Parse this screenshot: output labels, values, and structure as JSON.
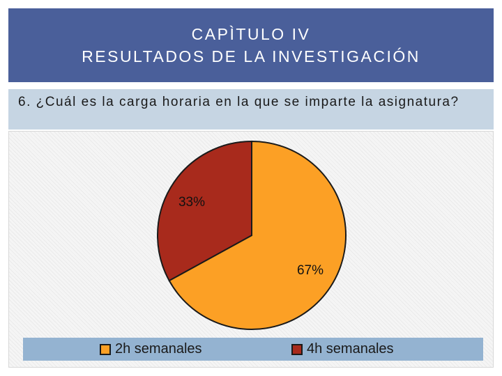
{
  "header": {
    "line1": "CAPÌTULO IV",
    "line2": "RESULTADOS DE LA INVESTIGACIÓN"
  },
  "question": {
    "text": "6. ¿Cuál es la carga horaria en la que se imparte la asignatura?"
  },
  "chart_data": {
    "type": "pie",
    "title": "",
    "categories": [
      "2h semanales",
      "4h semanales"
    ],
    "values": [
      67,
      33
    ],
    "labels": [
      "67%",
      "33%"
    ],
    "colors": [
      "#fca025",
      "#a82a1c"
    ],
    "legend_placement": "bottom"
  }
}
